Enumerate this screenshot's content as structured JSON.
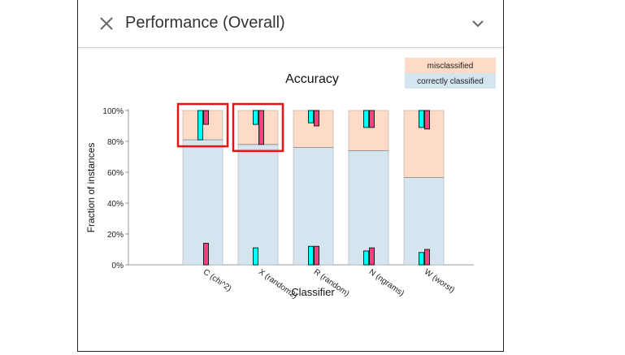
{
  "panel": {
    "title": "Performance (Overall)"
  },
  "chart_data": {
    "type": "bar",
    "title": "Accuracy",
    "xlabel": "Classifier",
    "ylabel": "Fraction of instances",
    "ylim": [
      0,
      1
    ],
    "yticks": [
      "0%",
      "20%",
      "40%",
      "60%",
      "80%",
      "100%"
    ],
    "categories": [
      "C (chi^2)",
      "X (random2)",
      "R (random)",
      "N (ngrams)",
      "W (worst)"
    ],
    "series": [
      {
        "name": "correctly classified",
        "color": "#d4e5f0",
        "values": [
          0.81,
          0.78,
          0.76,
          0.74,
          0.565
        ]
      },
      {
        "name": "misclassified",
        "color": "#fddbc7",
        "values": [
          0.19,
          0.22,
          0.24,
          0.26,
          0.435
        ]
      }
    ],
    "legend_position": "top-right",
    "interval_markers": {
      "colors": [
        "#00ffff",
        "#ff3d7f"
      ],
      "misclassified_region": [
        {
          "cyan": [
            0.81,
            1.0
          ],
          "pink": [
            0.91,
            1.0
          ]
        },
        {
          "cyan": [
            0.91,
            1.0
          ],
          "pink": [
            0.78,
            1.0
          ]
        },
        {
          "cyan": [
            0.92,
            1.0
          ],
          "pink": [
            0.9,
            1.0
          ]
        },
        {
          "cyan": [
            0.89,
            1.0
          ],
          "pink": [
            0.89,
            1.0
          ]
        },
        {
          "cyan": [
            0.89,
            1.0
          ],
          "pink": [
            0.88,
            1.0
          ]
        }
      ],
      "correct_region": [
        {
          "cyan": null,
          "pink": [
            0.0,
            0.14
          ]
        },
        {
          "cyan": [
            0.0,
            0.11
          ],
          "pink": null
        },
        {
          "cyan": [
            0.0,
            0.12
          ],
          "pink": [
            0.0,
            0.12
          ]
        },
        {
          "cyan": [
            0.0,
            0.09
          ],
          "pink": [
            0.0,
            0.11
          ]
        },
        {
          "cyan": [
            0.0,
            0.08
          ],
          "pink": [
            0.0,
            0.1
          ]
        }
      ]
    },
    "highlighted": [
      0,
      1
    ],
    "highlight_color": "#ee1111"
  }
}
